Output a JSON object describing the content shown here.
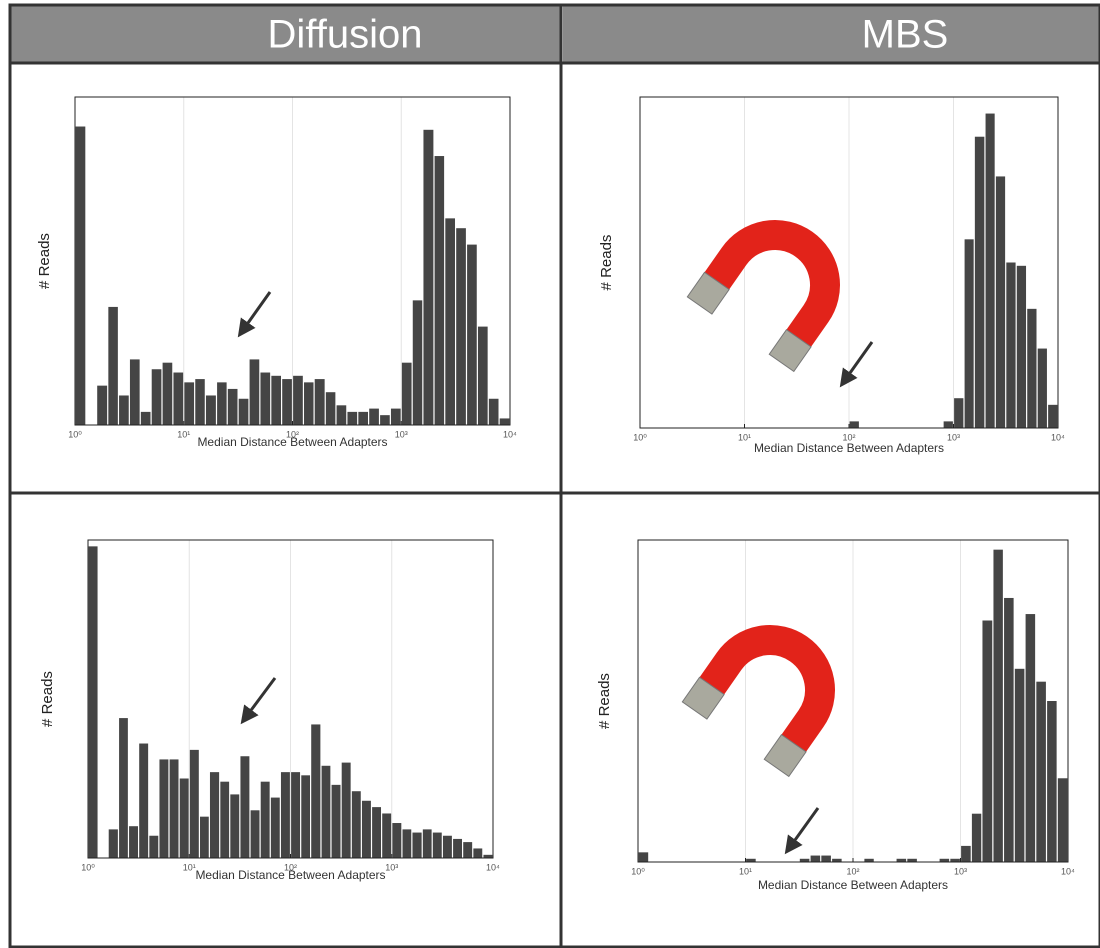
{
  "columns": [
    "Diffusion",
    "MBS"
  ],
  "chart_data": [
    {
      "type": "histogram",
      "xlabel": "Median Distance Between Adapters",
      "ylabel": "# Reads",
      "xscale": "log",
      "grid": true,
      "color": "#454545",
      "bins": [
        1,
        1.26,
        1.58,
        2,
        2.51,
        3.16,
        3.98,
        5.01,
        6.31,
        7.94,
        10,
        12.6,
        15.8,
        20,
        25.1,
        31.6,
        39.8,
        50.1,
        63.1,
        79.4,
        100,
        126,
        158,
        200,
        251,
        316,
        398,
        501,
        631,
        794,
        1000,
        1260,
        1580,
        2000,
        2510,
        3160,
        3980,
        5010,
        6310,
        7940,
        10000
      ],
      "values": [
        91,
        0,
        12,
        36,
        9,
        20,
        4,
        17,
        19,
        16,
        13,
        14,
        9,
        13,
        11,
        8,
        20,
        16,
        15,
        14,
        15,
        13,
        14,
        10,
        6,
        4,
        4,
        5,
        3,
        5,
        19,
        38,
        90,
        82,
        63,
        60,
        55,
        30,
        8,
        2
      ],
      "xlim": [
        1,
        10000
      ],
      "ylim": [
        0,
        100
      ],
      "xticks": [
        {
          "value": 1,
          "label": "10⁰"
        },
        {
          "value": 10,
          "label": "10¹"
        },
        {
          "value": 100,
          "label": "10²"
        },
        {
          "value": 1000,
          "label": "10³"
        },
        {
          "value": 10000,
          "label": "10⁴"
        }
      ]
    },
    {
      "type": "histogram",
      "xlabel": "Median Distance Between Adapters",
      "ylabel": "# Reads",
      "xscale": "log",
      "grid": true,
      "color": "#454545",
      "bins": [
        1,
        1.26,
        1.58,
        2,
        2.51,
        3.16,
        3.98,
        5.01,
        6.31,
        7.94,
        10,
        12.6,
        15.8,
        20,
        25.1,
        31.6,
        39.8,
        50.1,
        63.1,
        79.4,
        100,
        126,
        158,
        200,
        251,
        316,
        398,
        501,
        631,
        794,
        1000,
        1260,
        1580,
        2000,
        2510,
        3160,
        3980,
        5010,
        6310,
        7940,
        10000
      ],
      "values": [
        0,
        0,
        0,
        0,
        0,
        0,
        0,
        0,
        0,
        0,
        0,
        0,
        0,
        0,
        0,
        0,
        0,
        0,
        0,
        0,
        2,
        0,
        0,
        0,
        0,
        0,
        0,
        0,
        0,
        2,
        9,
        57,
        88,
        95,
        76,
        50,
        49,
        36,
        24,
        7
      ],
      "xlim": [
        1,
        10000
      ],
      "ylim": [
        0,
        100
      ],
      "xticks": [
        {
          "value": 1,
          "label": "10⁰"
        },
        {
          "value": 10,
          "label": "10¹"
        },
        {
          "value": 100,
          "label": "10²"
        },
        {
          "value": 1000,
          "label": "10³"
        },
        {
          "value": 10000,
          "label": "10⁴"
        }
      ]
    },
    {
      "type": "histogram",
      "xlabel": "Median Distance Between Adapters",
      "ylabel": "# Reads",
      "xscale": "log",
      "grid": true,
      "color": "#454545",
      "bins": [
        1,
        1.26,
        1.58,
        2,
        2.51,
        3.16,
        3.98,
        5.01,
        6.31,
        7.94,
        10,
        12.6,
        15.8,
        20,
        25.1,
        31.6,
        39.8,
        50.1,
        63.1,
        79.4,
        100,
        126,
        158,
        200,
        251,
        316,
        398,
        501,
        631,
        794,
        1000,
        1260,
        1580,
        2000,
        2510,
        3160,
        3980,
        5010,
        6310,
        7940,
        10000
      ],
      "values": [
        98,
        0,
        9,
        44,
        10,
        36,
        7,
        31,
        31,
        25,
        34,
        13,
        27,
        24,
        20,
        32,
        15,
        24,
        19,
        27,
        27,
        26,
        42,
        29,
        23,
        30,
        21,
        18,
        16,
        14,
        11,
        9,
        8,
        9,
        8,
        7,
        6,
        5,
        3,
        1
      ],
      "xlim": [
        1,
        10000
      ],
      "ylim": [
        0,
        100
      ],
      "xticks": [
        {
          "value": 1,
          "label": "10⁰"
        },
        {
          "value": 10,
          "label": "10¹"
        },
        {
          "value": 100,
          "label": "10²"
        },
        {
          "value": 1000,
          "label": "10³"
        },
        {
          "value": 10000,
          "label": "10⁴"
        }
      ]
    },
    {
      "type": "histogram",
      "xlabel": "Median Distance Between Adapters",
      "ylabel": "# Reads",
      "xscale": "log",
      "grid": true,
      "color": "#454545",
      "bins": [
        1,
        1.26,
        1.58,
        2,
        2.51,
        3.16,
        3.98,
        5.01,
        6.31,
        7.94,
        10,
        12.6,
        15.8,
        20,
        25.1,
        31.6,
        39.8,
        50.1,
        63.1,
        79.4,
        100,
        126,
        158,
        200,
        251,
        316,
        398,
        501,
        631,
        794,
        1000,
        1260,
        1580,
        2000,
        2510,
        3160,
        3980,
        5010,
        6310,
        7940,
        10000
      ],
      "values": [
        3,
        0,
        0,
        0,
        0,
        0,
        0,
        0,
        0,
        0,
        1,
        0,
        0,
        0,
        0,
        1,
        2,
        2,
        1,
        0,
        0,
        1,
        0,
        0,
        1,
        1,
        0,
        0,
        1,
        1,
        5,
        15,
        75,
        97,
        82,
        60,
        77,
        56,
        50,
        26
      ],
      "xlim": [
        1,
        10000
      ],
      "ylim": [
        0,
        100
      ],
      "xticks": [
        {
          "value": 1,
          "label": "10⁰"
        },
        {
          "value": 10,
          "label": "10¹"
        },
        {
          "value": 100,
          "label": "10²"
        },
        {
          "value": 1000,
          "label": "10³"
        },
        {
          "value": 10000,
          "label": "10⁴"
        }
      ]
    }
  ]
}
